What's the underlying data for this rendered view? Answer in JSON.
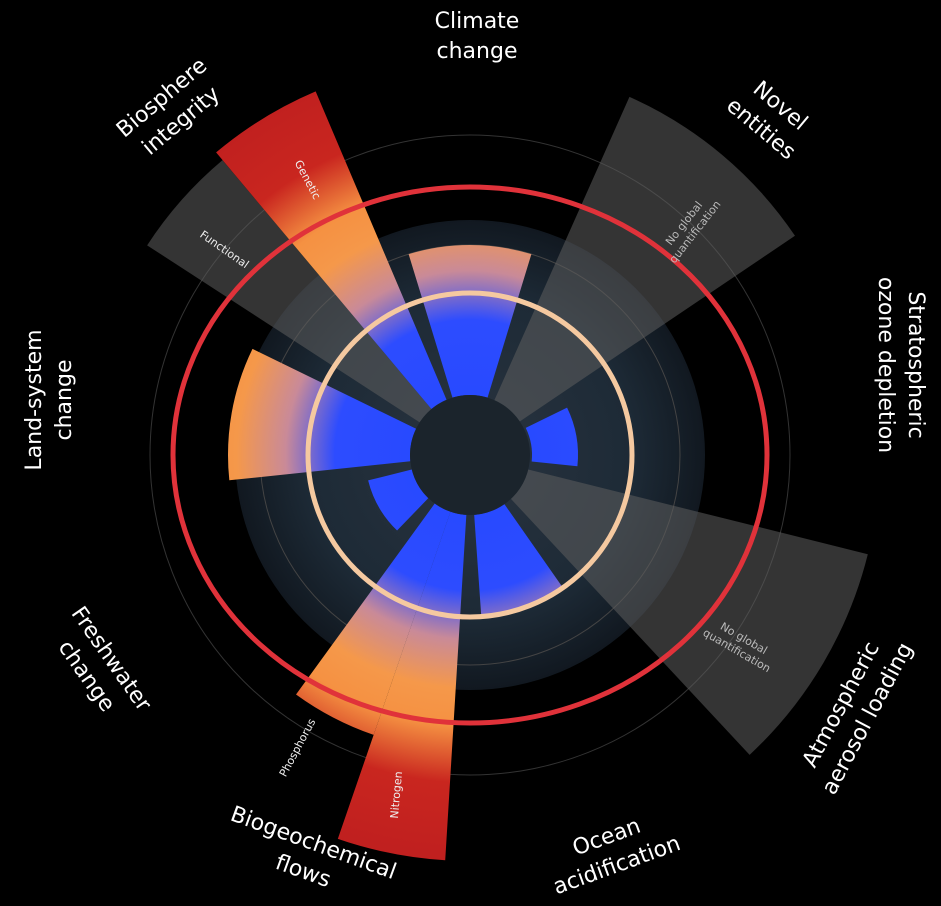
{
  "labels": [
    {
      "lines": [
        "Climate",
        "change"
      ]
    },
    {
      "lines": [
        "Novel",
        "entities"
      ]
    },
    {
      "lines": [
        "Stratospheric",
        "ozone depletion"
      ]
    },
    {
      "lines": [
        "Atmospheric",
        "aerosol loading"
      ]
    },
    {
      "lines": [
        "Ocean",
        "acidification"
      ]
    },
    {
      "lines": [
        "Biogeochemical",
        "flows"
      ]
    },
    {
      "lines": [
        "Freshwater",
        "change"
      ]
    },
    {
      "lines": [
        "Land-system",
        "change"
      ]
    },
    {
      "lines": [
        "Biosphere",
        "integrity"
      ]
    }
  ],
  "sublabels": [
    "Genetic",
    "Functional",
    "Phosphorus",
    "Nitrogen"
  ],
  "no_quantification": [
    [
      "No global",
      "quantification"
    ],
    [
      "No global",
      "quantification"
    ]
  ]
}
